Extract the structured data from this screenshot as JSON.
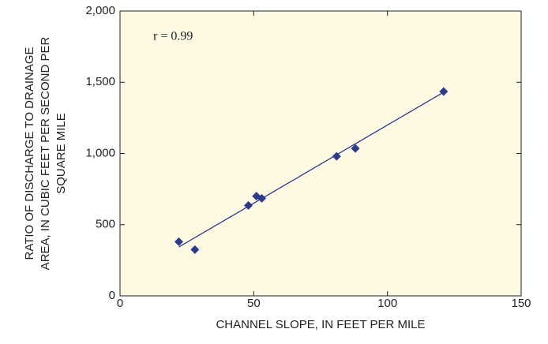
{
  "chart_data": {
    "type": "scatter",
    "x_label": "CHANNEL SLOPE, IN FEET PER MILE",
    "y_label": [
      "RATIO OF DISCHARGE TO DRAINAGE",
      "AREA, IN CUBIC FEET PER SECOND PER",
      "SQUARE MILE"
    ],
    "annotation": "r = 0.99",
    "series": [
      {
        "color": "#2e3a8c",
        "x": [
          22,
          28,
          48,
          51,
          53,
          81,
          88,
          121
        ],
        "values": [
          380,
          325,
          635,
          700,
          685,
          980,
          1035,
          1435
        ]
      }
    ],
    "fit_line": {
      "color": "#2e3a8c",
      "x": [
        22,
        121
      ],
      "values": [
        343,
        1430
      ]
    },
    "xlim": [
      0,
      150
    ],
    "xticks": [
      0,
      50,
      100,
      150
    ],
    "ylim": [
      0,
      2000
    ],
    "yticks": [
      0,
      500,
      {
        "value": 1000,
        "label": "1,000"
      },
      {
        "value": 1500,
        "label": "1,500"
      },
      {
        "value": 2000,
        "label": "2,000"
      }
    ],
    "background": "#fdf9e3"
  }
}
